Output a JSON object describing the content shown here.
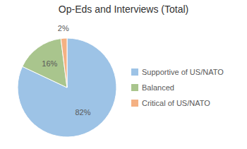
{
  "chart_data": {
    "type": "pie",
    "title": "Op-Eds and Interviews (Total)",
    "categories": [
      "Supportive of US/NATO",
      "Balanced",
      "Critical of US/NATO"
    ],
    "values": [
      82,
      16,
      2
    ],
    "value_labels": [
      "82%",
      "16%",
      "2%"
    ],
    "data_labels": true,
    "colors": [
      "#9dc3e6",
      "#a9c58d",
      "#f4b183"
    ],
    "legend": "right"
  }
}
